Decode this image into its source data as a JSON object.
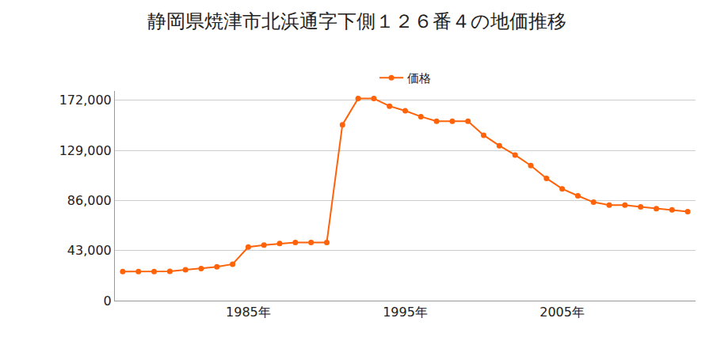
{
  "chart_data": {
    "type": "line",
    "title": "静岡県焼津市北浜通字下側１２６番４の地価推移",
    "x": [
      1977,
      1978,
      1979,
      1980,
      1981,
      1982,
      1983,
      1984,
      1985,
      1986,
      1987,
      1988,
      1989,
      1990,
      1991,
      1992,
      1993,
      1994,
      1995,
      1996,
      1997,
      1998,
      1999,
      2000,
      2001,
      2002,
      2003,
      2004,
      2005,
      2006,
      2007,
      2008,
      2009,
      2010,
      2011,
      2012,
      2013
    ],
    "series": [
      {
        "name": "価格",
        "color": "#ff6309",
        "marker": "circle",
        "line_style": "solid",
        "values": [
          25000,
          25000,
          25000,
          25200,
          26500,
          27500,
          29000,
          31300,
          46000,
          47700,
          49000,
          50000,
          50000,
          50000,
          151000,
          173500,
          173500,
          167000,
          163000,
          158000,
          154000,
          154000,
          154000,
          142000,
          133000,
          125000,
          116000,
          105000,
          96000,
          90000,
          84500,
          82000,
          82000,
          80500,
          79000,
          78000,
          76500
        ]
      }
    ],
    "xlim": [
      1976.5,
      2013.5
    ],
    "xticks": [
      {
        "value": 1985,
        "label": "1985年"
      },
      {
        "value": 1995,
        "label": "1995年"
      },
      {
        "value": 2005,
        "label": "2005年"
      }
    ],
    "ylim": [
      0,
      180000
    ],
    "yticks": [
      0,
      {
        "value": 43000,
        "label": "43,000"
      },
      {
        "value": 86000,
        "label": "86,000"
      },
      {
        "value": 129000,
        "label": "129,000"
      },
      {
        "value": 172000,
        "label": "172,000"
      }
    ],
    "grid": true,
    "legend": "top"
  }
}
